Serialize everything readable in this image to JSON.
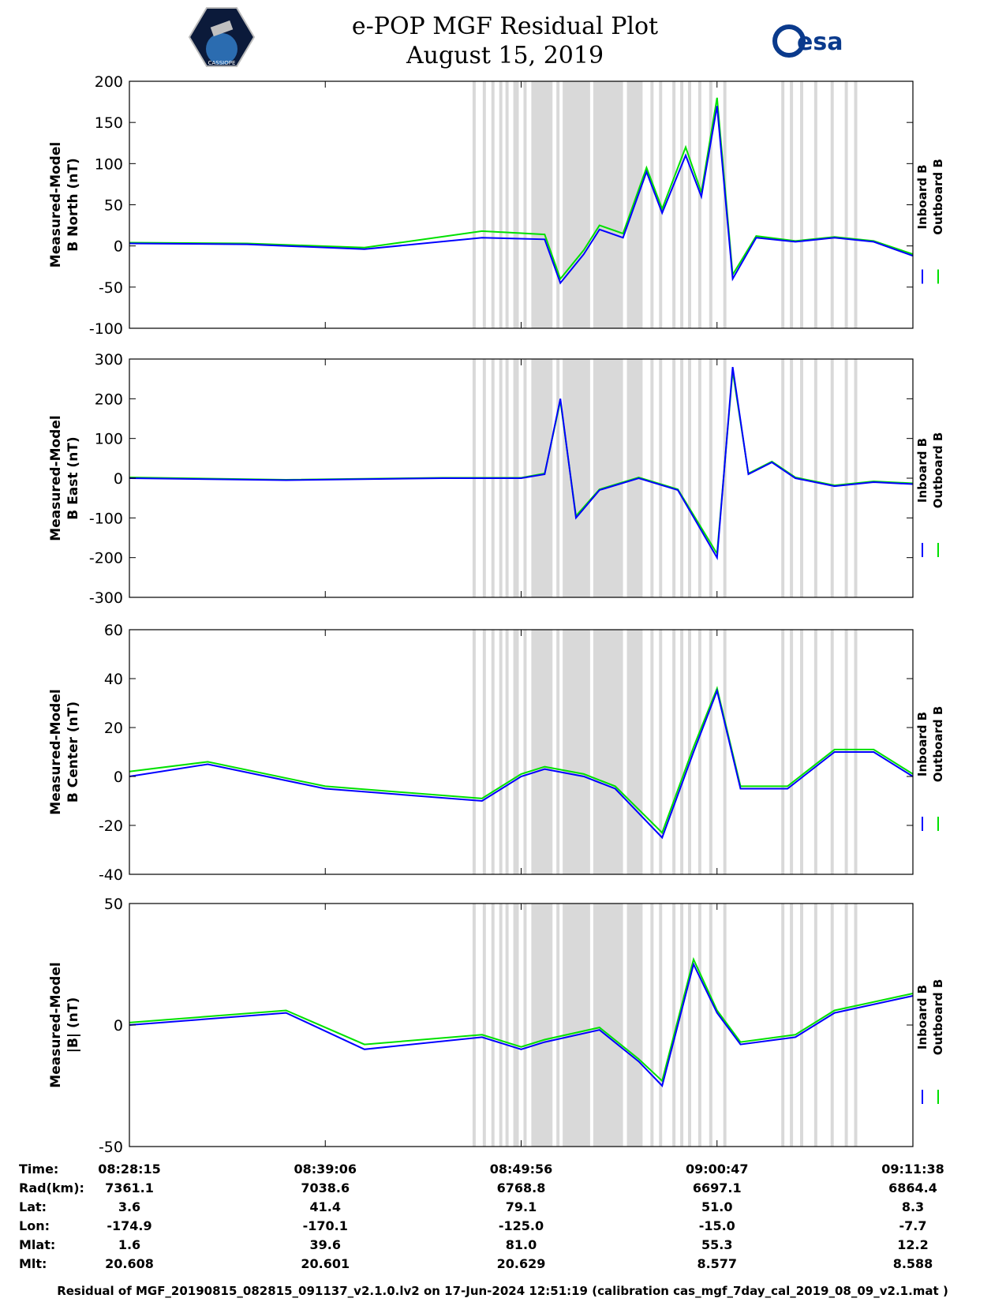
{
  "header": {
    "title": "e-POP MGF Residual Plot",
    "date": "August 15, 2019",
    "left_logo": "cassiope-logo",
    "left_logo_text": "CASSIOPE",
    "right_logo": "esa-logo",
    "right_logo_text": "esa"
  },
  "colors": {
    "inboard": "#0000ff",
    "outboard": "#00e000",
    "shading": "#d9d9d9"
  },
  "legend": {
    "inboard": "Inboard B",
    "outboard": "Outboard B"
  },
  "chart_data": [
    {
      "type": "line",
      "ylabel": [
        "Measured-Model",
        "B North (nT)"
      ],
      "ylim": [
        -100,
        200
      ],
      "yticks": [
        -100,
        -50,
        0,
        50,
        100,
        150,
        200
      ],
      "x": [
        0,
        0.15,
        0.3,
        0.45,
        0.53,
        0.55,
        0.58,
        0.6,
        0.63,
        0.66,
        0.68,
        0.71,
        0.73,
        0.75,
        0.77,
        0.8,
        0.85,
        0.9,
        0.95,
        1.0
      ],
      "series": [
        {
          "values": [
            3,
            2,
            -4,
            10,
            8,
            -45,
            -10,
            20,
            10,
            90,
            40,
            110,
            60,
            170,
            -40,
            10,
            5,
            10,
            5,
            -12
          ]
        },
        {
          "values": [
            4,
            3,
            -2,
            18,
            14,
            -40,
            -5,
            25,
            15,
            95,
            45,
            120,
            65,
            180,
            -35,
            12,
            6,
            11,
            6,
            -10
          ]
        }
      ]
    },
    {
      "type": "line",
      "ylabel": [
        "Measured-Model",
        "B East (nT)"
      ],
      "ylim": [
        -300,
        300
      ],
      "yticks": [
        -300,
        -200,
        -100,
        0,
        100,
        200,
        300
      ],
      "x": [
        0,
        0.2,
        0.4,
        0.5,
        0.53,
        0.55,
        0.57,
        0.6,
        0.65,
        0.7,
        0.75,
        0.77,
        0.79,
        0.82,
        0.85,
        0.9,
        0.95,
        1.0
      ],
      "series": [
        {
          "values": [
            0,
            -5,
            0,
            0,
            10,
            200,
            -100,
            -30,
            0,
            -30,
            -200,
            280,
            10,
            40,
            0,
            -20,
            -10,
            -15
          ]
        },
        {
          "values": [
            2,
            -4,
            1,
            1,
            12,
            195,
            -95,
            -28,
            2,
            -28,
            -190,
            270,
            12,
            42,
            2,
            -18,
            -8,
            -13
          ]
        }
      ]
    },
    {
      "type": "line",
      "ylabel": [
        "Measured-Model",
        "B Center (nT)"
      ],
      "ylim": [
        -40,
        60
      ],
      "yticks": [
        -40,
        -20,
        0,
        20,
        40,
        60
      ],
      "x": [
        0,
        0.1,
        0.25,
        0.45,
        0.5,
        0.53,
        0.58,
        0.62,
        0.68,
        0.72,
        0.75,
        0.78,
        0.84,
        0.88,
        0.9,
        0.95,
        1.0
      ],
      "series": [
        {
          "values": [
            0,
            5,
            -5,
            -10,
            0,
            3,
            0,
            -5,
            -25,
            10,
            35,
            -5,
            -5,
            5,
            10,
            10,
            0
          ]
        },
        {
          "values": [
            2,
            6,
            -4,
            -9,
            1,
            4,
            1,
            -4,
            -23,
            12,
            36,
            -4,
            -4,
            6,
            11,
            11,
            1
          ]
        }
      ]
    },
    {
      "type": "line",
      "ylabel": [
        "Measured-Model",
        "|B| (nT)"
      ],
      "ylim": [
        -50,
        50
      ],
      "yticks": [
        -50,
        0,
        50
      ],
      "x": [
        0,
        0.2,
        0.3,
        0.45,
        0.5,
        0.53,
        0.6,
        0.65,
        0.68,
        0.72,
        0.75,
        0.78,
        0.85,
        0.9,
        1.0
      ],
      "series": [
        {
          "values": [
            0,
            5,
            -10,
            -5,
            -10,
            -7,
            -2,
            -15,
            -25,
            25,
            5,
            -8,
            -5,
            5,
            12
          ]
        },
        {
          "values": [
            1,
            6,
            -8,
            -4,
            -9,
            -6,
            -1,
            -14,
            -23,
            27,
            6,
            -7,
            -4,
            6,
            13
          ]
        }
      ]
    }
  ],
  "x_axis": {
    "ticks": [
      0,
      0.25,
      0.5,
      0.75,
      1.0
    ]
  },
  "shaded_intervals": [
    [
      0.438,
      0.442
    ],
    [
      0.451,
      0.455
    ],
    [
      0.462,
      0.466
    ],
    [
      0.472,
      0.476
    ],
    [
      0.48,
      0.484
    ],
    [
      0.49,
      0.497
    ],
    [
      0.503,
      0.507
    ],
    [
      0.513,
      0.54
    ],
    [
      0.545,
      0.549
    ],
    [
      0.553,
      0.588
    ],
    [
      0.592,
      0.63
    ],
    [
      0.635,
      0.655
    ],
    [
      0.665,
      0.669
    ],
    [
      0.676,
      0.68
    ],
    [
      0.693,
      0.697
    ],
    [
      0.703,
      0.707
    ],
    [
      0.713,
      0.717
    ],
    [
      0.726,
      0.73
    ],
    [
      0.74,
      0.744
    ],
    [
      0.758,
      0.762
    ],
    [
      0.832,
      0.836
    ],
    [
      0.843,
      0.847
    ],
    [
      0.856,
      0.86
    ],
    [
      0.874,
      0.878
    ],
    [
      0.895,
      0.899
    ],
    [
      0.913,
      0.917
    ],
    [
      0.925,
      0.929
    ]
  ],
  "info_table": {
    "row_labels": [
      "Time:",
      "Rad(km):",
      "Lat:",
      "Lon:",
      "Mlat:",
      "Mlt:"
    ],
    "columns": [
      [
        "08:28:15",
        "7361.1",
        "3.6",
        "-174.9",
        "1.6",
        "20.608"
      ],
      [
        "08:39:06",
        "7038.6",
        "41.4",
        "-170.1",
        "39.6",
        "20.601"
      ],
      [
        "08:49:56",
        "6768.8",
        "79.1",
        "-125.0",
        "81.0",
        "20.629"
      ],
      [
        "09:00:47",
        "6697.1",
        "51.0",
        "-15.0",
        "55.3",
        "8.577"
      ],
      [
        "09:11:38",
        "6864.4",
        "8.3",
        "-7.7",
        "12.2",
        "8.588"
      ]
    ]
  },
  "footer": "Residual of MGF_20190815_082815_091137_v2.1.0.lv2 on 17-Jun-2024 12:51:19 (calibration cas_mgf_7day_cal_2019_08_09_v2.1.mat )"
}
